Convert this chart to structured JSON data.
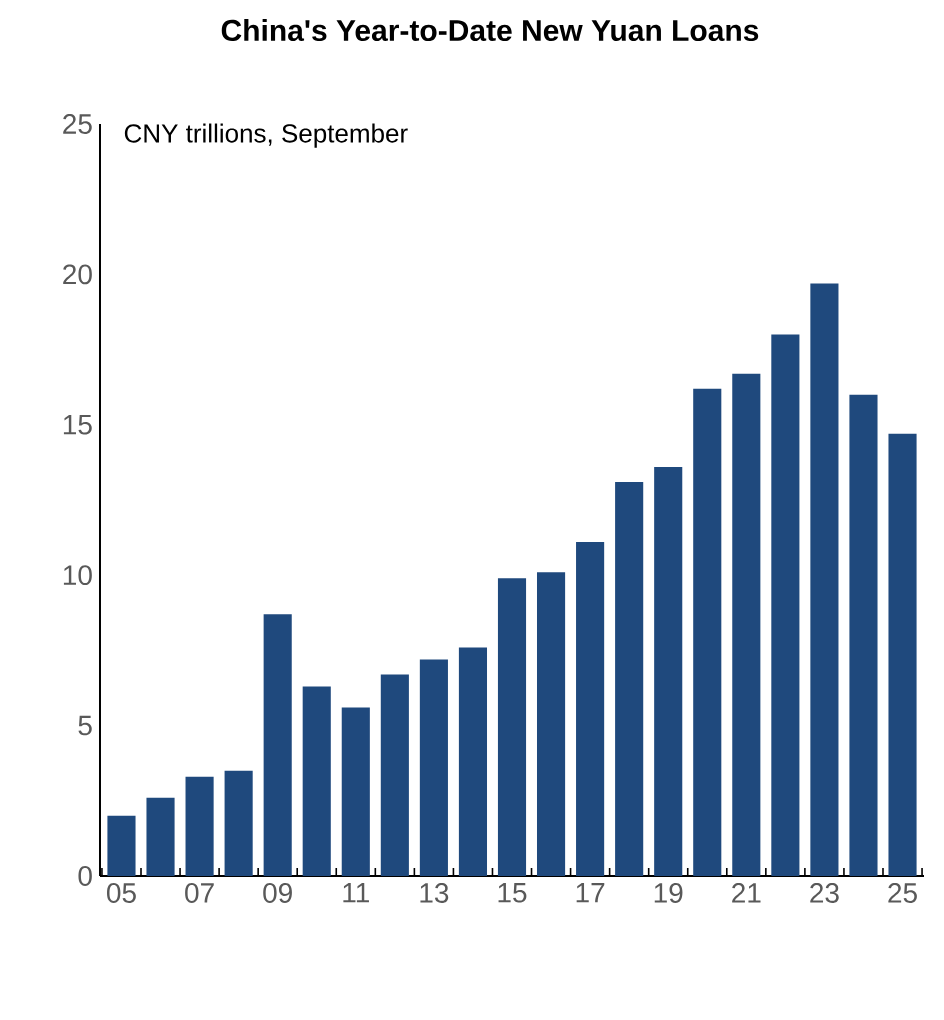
{
  "chart_data": {
    "type": "bar",
    "title": "China's Year-to-Date New Yuan Loans",
    "ylabel": "CNY trillions, September",
    "categories": [
      "05",
      null,
      "07",
      null,
      "09",
      null,
      "11",
      null,
      "13",
      null,
      "15",
      null,
      "17",
      null,
      "19",
      null,
      "21",
      null,
      "23",
      null,
      "25"
    ],
    "values": [
      2.0,
      2.6,
      3.3,
      3.5,
      8.7,
      6.3,
      5.6,
      6.7,
      7.2,
      7.6,
      9.9,
      10.1,
      11.1,
      13.1,
      13.6,
      16.2,
      16.7,
      18.0,
      19.7,
      16.0,
      14.7
    ],
    "color": "#1f497d",
    "ylim": [
      0,
      25
    ],
    "yticks": [
      0,
      5,
      10,
      15,
      20,
      25
    ],
    "grid": false
  }
}
